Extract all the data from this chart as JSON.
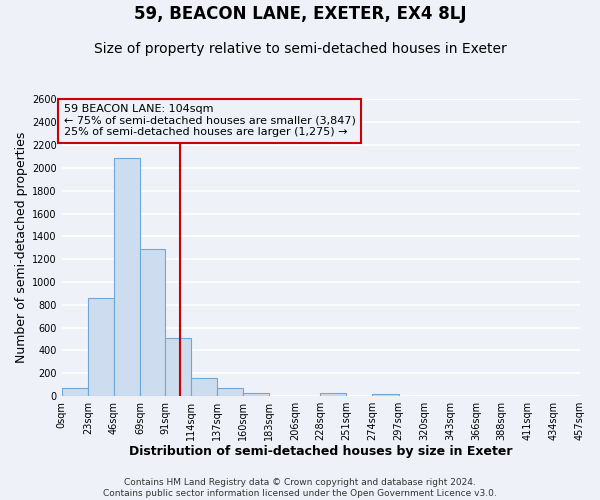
{
  "title": "59, BEACON LANE, EXETER, EX4 8LJ",
  "subtitle": "Size of property relative to semi-detached houses in Exeter",
  "xlabel": "Distribution of semi-detached houses by size in Exeter",
  "ylabel": "Number of semi-detached properties",
  "bin_edges": [
    0,
    23,
    46,
    69,
    91,
    114,
    137,
    160,
    183,
    206,
    228,
    251,
    274,
    297,
    320,
    343,
    366,
    388,
    411,
    434,
    457
  ],
  "bin_labels": [
    "0sqm",
    "23sqm",
    "46sqm",
    "69sqm",
    "91sqm",
    "114sqm",
    "137sqm",
    "160sqm",
    "183sqm",
    "206sqm",
    "228sqm",
    "251sqm",
    "274sqm",
    "297sqm",
    "320sqm",
    "343sqm",
    "366sqm",
    "388sqm",
    "411sqm",
    "434sqm",
    "457sqm"
  ],
  "counts": [
    75,
    860,
    2090,
    1290,
    510,
    160,
    75,
    30,
    0,
    0,
    30,
    0,
    20,
    0,
    0,
    0,
    0,
    0,
    0,
    0
  ],
  "bar_color": "#cddcee",
  "bar_edge_color": "#6ea8d8",
  "vline_x": 104,
  "vline_color": "#cc0000",
  "annotation_title": "59 BEACON LANE: 104sqm",
  "annotation_line1": "← 75% of semi-detached houses are smaller (3,847)",
  "annotation_line2": "25% of semi-detached houses are larger (1,275) →",
  "annotation_box_color": "#cc0000",
  "ylim": [
    0,
    2600
  ],
  "yticks": [
    0,
    200,
    400,
    600,
    800,
    1000,
    1200,
    1400,
    1600,
    1800,
    2000,
    2200,
    2400,
    2600
  ],
  "footer_line1": "Contains HM Land Registry data © Crown copyright and database right 2024.",
  "footer_line2": "Contains public sector information licensed under the Open Government Licence v3.0.",
  "bg_color": "#eef2f8",
  "grid_color": "#ffffff",
  "title_fontsize": 12,
  "subtitle_fontsize": 10,
  "axis_label_fontsize": 9,
  "tick_fontsize": 7,
  "annotation_fontsize": 8,
  "footer_fontsize": 6.5
}
